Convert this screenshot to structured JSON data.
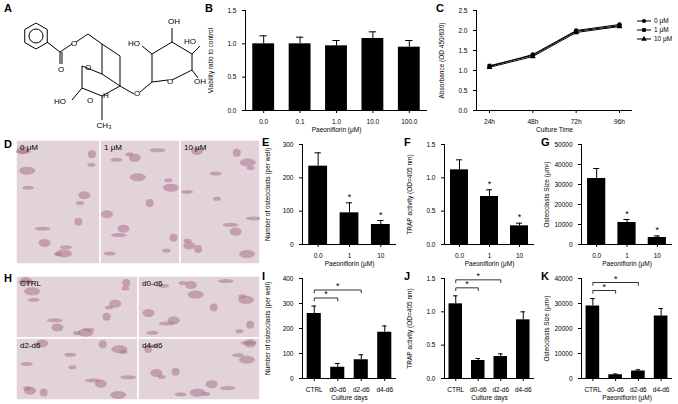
{
  "figure": {
    "panel_labels": [
      "A",
      "B",
      "C",
      "D",
      "E",
      "F",
      "G",
      "H",
      "I",
      "J",
      "K"
    ],
    "structure": {
      "panel": "A",
      "atom_labels": [
        "O",
        "O",
        "HO",
        "O",
        "H",
        "O",
        "CH₃",
        "O",
        "HO",
        "OH",
        "HO",
        "OH",
        "O"
      ]
    },
    "images": [
      {
        "panel": "D",
        "labels": [
          "0 μM",
          "1 μM",
          "10 μM"
        ]
      },
      {
        "panel": "H",
        "labels": [
          "CTRL",
          "d0-d6",
          "d2-d6",
          "d4-d6"
        ]
      }
    ]
  },
  "chart_data": [
    {
      "panel": "B",
      "type": "bar",
      "color": "#000000",
      "categories": [
        "0.0",
        "0.1",
        "1.0",
        "10.0",
        "100.0"
      ],
      "values": [
        1.0,
        1.0,
        0.97,
        1.08,
        0.95
      ],
      "errors": [
        0.12,
        0.1,
        0.08,
        0.1,
        0.1
      ],
      "ylim": [
        0,
        1.5
      ],
      "yticks": [
        {
          "value": 0,
          "label": "0.0"
        },
        {
          "value": 0.5,
          "label": "0.5"
        },
        {
          "value": 1,
          "label": "1.0"
        },
        {
          "value": 1.5,
          "label": "1.5"
        }
      ],
      "x_label": "Paeoniflorin (μM)",
      "y_label": "Viability ratio to control"
    },
    {
      "panel": "C",
      "type": "line",
      "categories": [
        "24h",
        "48h",
        "72h",
        "96h"
      ],
      "series": [
        {
          "name": "0 μM",
          "color": "#000000",
          "marker": "circle",
          "values": [
            1.1,
            1.4,
            2.0,
            2.15
          ]
        },
        {
          "name": "1 μM",
          "color": "#000000",
          "marker": "square",
          "values": [
            1.12,
            1.38,
            1.98,
            2.12
          ]
        },
        {
          "name": "10 μM",
          "color": "#000000",
          "marker": "triangle",
          "values": [
            1.08,
            1.35,
            1.95,
            2.1
          ]
        }
      ],
      "ylim": [
        0,
        2.5
      ],
      "yticks": [
        {
          "value": 0,
          "label": "0.0"
        },
        {
          "value": 0.5,
          "label": "0.5"
        },
        {
          "value": 1,
          "label": "1.0"
        },
        {
          "value": 1.5,
          "label": "1.5"
        },
        {
          "value": 2,
          "label": "2.0"
        },
        {
          "value": 2.5,
          "label": "2.5"
        }
      ],
      "x_label": "Culture Time",
      "y_label": "Absorbance (OD 450/630)",
      "legend": "right"
    },
    {
      "panel": "E",
      "type": "bar",
      "color": "#000000",
      "categories": [
        "0.0",
        "1",
        "10"
      ],
      "values": [
        235,
        95,
        60
      ],
      "errors": [
        40,
        30,
        12
      ],
      "significance": [
        null,
        "*",
        "*"
      ],
      "ylim": [
        0,
        300
      ],
      "yticks": [
        0,
        100,
        200,
        300
      ],
      "x_label": "Paeoniflorin (μM)",
      "y_label": "Number of osteoclasts (per well)"
    },
    {
      "panel": "F",
      "type": "bar",
      "color": "#000000",
      "categories": [
        "0.0",
        "1",
        "10"
      ],
      "values": [
        1.12,
        0.72,
        0.28
      ],
      "errors": [
        0.15,
        0.1,
        0.04
      ],
      "significance": [
        null,
        "*",
        "*"
      ],
      "ylim": [
        0,
        1.5
      ],
      "yticks": [
        {
          "value": 0,
          "label": "0.0"
        },
        {
          "value": 0.5,
          "label": "0.5"
        },
        {
          "value": 1,
          "label": "1.0"
        },
        {
          "value": 1.5,
          "label": "1.5"
        }
      ],
      "x_label": "Paeoniflorin (μM)",
      "y_label": "TRAP activity (OD=405 nm)"
    },
    {
      "panel": "G",
      "type": "bar",
      "color": "#000000",
      "categories": [
        "0.0",
        "1",
        "10"
      ],
      "values": [
        33000,
        11000,
        3500
      ],
      "errors": [
        5000,
        1500,
        800
      ],
      "significance": [
        null,
        "*",
        "*"
      ],
      "ylim": [
        0,
        50000
      ],
      "yticks": [
        0,
        10000,
        20000,
        30000,
        40000,
        50000
      ],
      "x_label": "Paeoniflorin (μM)",
      "y_label": "Osteoclasts Size (μm²)"
    },
    {
      "panel": "I",
      "type": "bar",
      "color": "#000000",
      "categories": [
        "CTRL",
        "d0-d6",
        "d2-d6",
        "d4-d6"
      ],
      "values": [
        260,
        45,
        75,
        185
      ],
      "errors": [
        30,
        15,
        20,
        25
      ],
      "comparisons": [
        {
          "from": "CTRL",
          "to": "d0-d6",
          "label": "*"
        },
        {
          "from": "CTRL",
          "to": "d2-d6",
          "label": "*"
        }
      ],
      "ylim": [
        0,
        400
      ],
      "yticks": [
        0,
        100,
        200,
        300,
        400
      ],
      "x_label": "Culture days",
      "y_label": "Number of osteoclasts (per well)"
    },
    {
      "panel": "J",
      "type": "bar",
      "color": "#000000",
      "categories": [
        "CTRL",
        "d0-d6",
        "d2-d6",
        "d4-d6"
      ],
      "values": [
        1.12,
        0.27,
        0.33,
        0.88
      ],
      "errors": [
        0.12,
        0.03,
        0.04,
        0.12
      ],
      "comparisons": [
        {
          "from": "CTRL",
          "to": "d0-d6",
          "label": "*"
        },
        {
          "from": "CTRL",
          "to": "d2-d6",
          "label": "*"
        }
      ],
      "ylim": [
        0,
        1.5
      ],
      "yticks": [
        {
          "value": 0,
          "label": "0.0"
        },
        {
          "value": 0.5,
          "label": "0.5"
        },
        {
          "value": 1,
          "label": "1.0"
        },
        {
          "value": 1.5,
          "label": "1.5"
        }
      ],
      "x_label": "Culture days",
      "y_label": "TRAP activity (OD=405 nm)"
    },
    {
      "panel": "K",
      "type": "bar",
      "color": "#000000",
      "categories": [
        "CTRL",
        "d0-d6",
        "d2-d6",
        "d4-d6"
      ],
      "values": [
        29000,
        1500,
        3000,
        25000
      ],
      "errors": [
        3000,
        300,
        500,
        3000
      ],
      "comparisons": [
        {
          "from": "CTRL",
          "to": "d0-d6",
          "label": "*"
        },
        {
          "from": "CTRL",
          "to": "d2-d6",
          "label": "*"
        }
      ],
      "ylim": [
        0,
        40000
      ],
      "yticks": [
        0,
        10000,
        20000,
        30000,
        40000
      ],
      "x_label": "Paeoniflorin (μM)",
      "y_label": "Osteoclasts Size (μm²)"
    }
  ]
}
